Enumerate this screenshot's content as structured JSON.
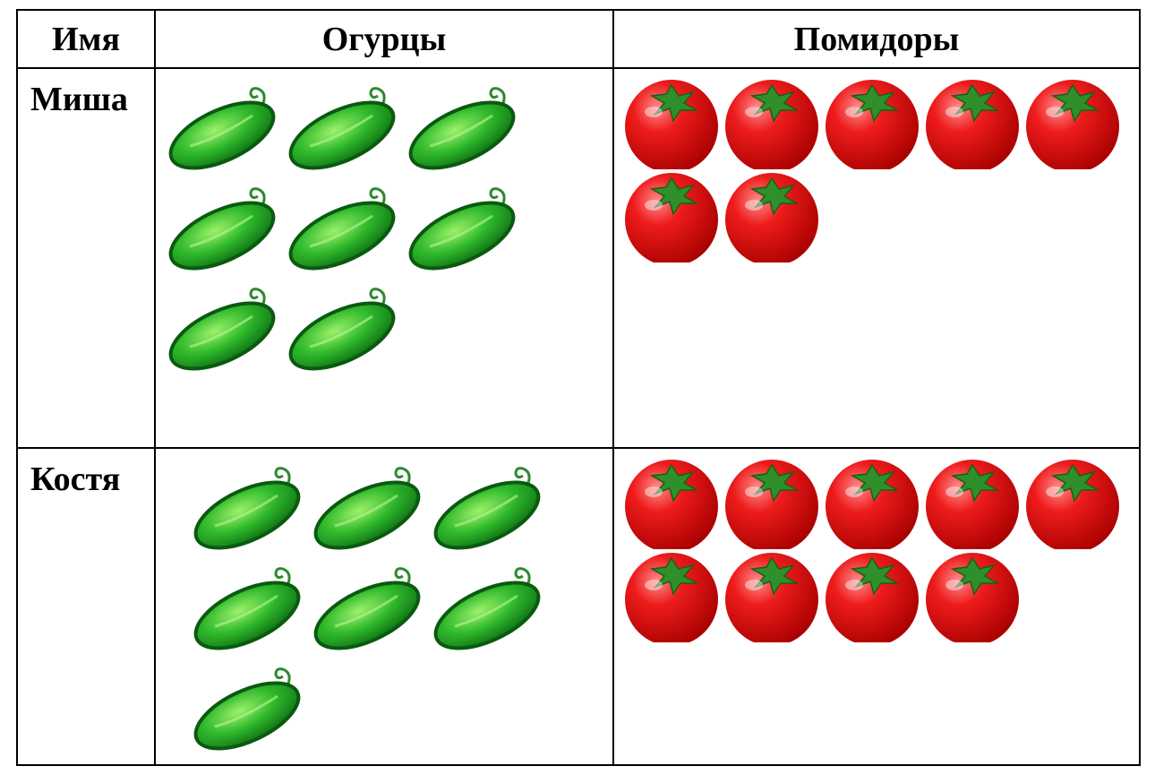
{
  "table": {
    "header": [
      "Имя",
      "Огурцы",
      "Помидоры"
    ],
    "rows": [
      {
        "name": "Миша",
        "cucumbers": 8,
        "tomatoes": 7
      },
      {
        "name": "Костя",
        "cucumbers": 7,
        "tomatoes": 9
      }
    ]
  }
}
